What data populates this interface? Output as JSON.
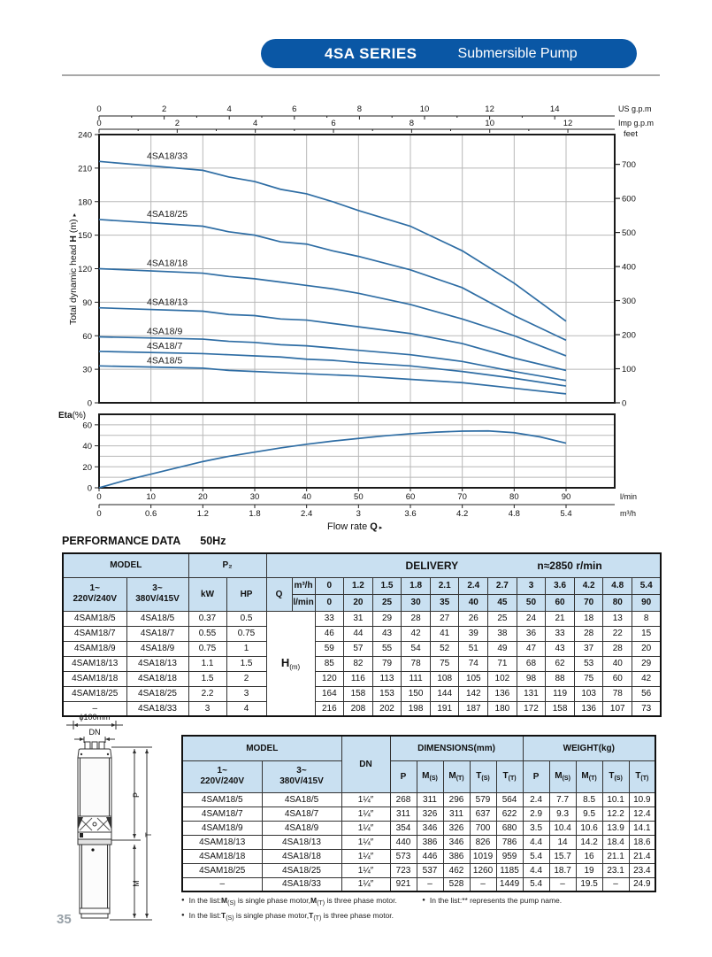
{
  "page": {
    "number": "35"
  },
  "header": {
    "series": "4SA SERIES",
    "subtitle": "Submersible Pump"
  },
  "colors": {
    "banner": "#0a57a5",
    "curve": "#2e6da4",
    "grid": "#b8b8b8",
    "border": "#1a1a1a",
    "table_header_bg": "#c9e0f1"
  },
  "section_heading": {
    "title": "PERFORMANCE DATA",
    "freq": "50Hz"
  },
  "chart_data": [
    {
      "type": "line",
      "title": "Head vs flow curves",
      "x_unit": "l/min",
      "x": [
        0,
        20,
        25,
        30,
        35,
        40,
        45,
        50,
        60,
        70,
        80,
        90
      ],
      "series": [
        {
          "name": "4SA18/33",
          "values": [
            216,
            208,
            202,
            198,
            191,
            187,
            180,
            172,
            158,
            136,
            107,
            73
          ]
        },
        {
          "name": "4SA18/25",
          "values": [
            164,
            158,
            153,
            150,
            144,
            142,
            136,
            131,
            119,
            103,
            78,
            56
          ]
        },
        {
          "name": "4SA18/18",
          "values": [
            120,
            116,
            113,
            111,
            108,
            105,
            102,
            98,
            88,
            75,
            60,
            42
          ]
        },
        {
          "name": "4SA18/13",
          "values": [
            85,
            82,
            79,
            78,
            75,
            74,
            71,
            68,
            62,
            53,
            40,
            29
          ]
        },
        {
          "name": "4SA18/9",
          "values": [
            59,
            57,
            55,
            54,
            52,
            51,
            49,
            47,
            43,
            37,
            28,
            20
          ]
        },
        {
          "name": "4SA18/7",
          "values": [
            46,
            44,
            43,
            42,
            41,
            39,
            38,
            36,
            33,
            28,
            22,
            15
          ]
        },
        {
          "name": "4SA18/5",
          "values": [
            33,
            31,
            29,
            28,
            27,
            26,
            25,
            24,
            21,
            18,
            13,
            8
          ]
        }
      ],
      "ylabel_parts": [
        "Total dynamic head ",
        "H",
        " (m) "
      ],
      "ylabel_arrow": "▸",
      "ylim": [
        0,
        240
      ],
      "ytick_step": 30,
      "right_axis": {
        "unit": "feet",
        "ticks": [
          0,
          100,
          200,
          300,
          400,
          500,
          600,
          700
        ]
      },
      "top_axes": [
        {
          "unit": "US g.p.m",
          "ticks": [
            0,
            2,
            4,
            6,
            8,
            10,
            12,
            14
          ],
          "minor_step": 1
        },
        {
          "unit": "Imp g.p.m",
          "ticks": [
            0,
            2,
            4,
            6,
            8,
            10,
            12
          ],
          "minor_step": 1
        }
      ],
      "grid": true,
      "legend_position": "on-curve-labels"
    },
    {
      "type": "line",
      "title": "Efficiency curve",
      "ylabel": "Eta",
      "ylabel_unit": "(%)",
      "ylim": [
        0,
        70
      ],
      "yticks": [
        0,
        20,
        40,
        60
      ],
      "points": [
        [
          0,
          0
        ],
        [
          5,
          7
        ],
        [
          10,
          13
        ],
        [
          15,
          19
        ],
        [
          20,
          25
        ],
        [
          25,
          30
        ],
        [
          30,
          34
        ],
        [
          35,
          38
        ],
        [
          40,
          41.5
        ],
        [
          45,
          44.5
        ],
        [
          50,
          47
        ],
        [
          55,
          49.5
        ],
        [
          60,
          51.5
        ],
        [
          65,
          53
        ],
        [
          70,
          54
        ],
        [
          75,
          54.2
        ],
        [
          80,
          52.5
        ],
        [
          85,
          48.5
        ],
        [
          90,
          42.5
        ]
      ],
      "x_ticks_lmin": [
        0,
        10,
        20,
        30,
        40,
        50,
        60,
        70,
        80,
        90
      ],
      "x_ticks_m3h": [
        "0",
        "0.6",
        "1.2",
        "1.8",
        "2.4",
        "3",
        "3.6",
        "4.2",
        "4.8",
        "5.4"
      ],
      "x_units": [
        "l/min",
        "m³/h"
      ],
      "xlabel": "Flow rate",
      "xlabel_sym": "Q",
      "xlabel_arrow": "▸",
      "grid": true
    }
  ],
  "perf_table": {
    "header": {
      "model": "MODEL",
      "p2": "P₂",
      "delivery": "DELIVERY",
      "speed": "n≈2850 r/min",
      "phase1": "1~",
      "v1": "220V/240V",
      "phase3": "3~",
      "v3": "380V/415V",
      "kw": "kW",
      "hp": "HP",
      "q": "Q",
      "m3h": "m³/h",
      "lmin": "l/min",
      "h": "H",
      "h_sub": "(m)"
    },
    "q_m3h": [
      "0",
      "1.2",
      "1.5",
      "1.8",
      "2.1",
      "2.4",
      "2.7",
      "3",
      "3.6",
      "4.2",
      "4.8",
      "5.4"
    ],
    "q_lmin": [
      "0",
      "20",
      "25",
      "30",
      "35",
      "40",
      "45",
      "50",
      "60",
      "70",
      "80",
      "90"
    ],
    "rows": [
      {
        "m1": "4SAM18/5",
        "m3": "4SA18/5",
        "kw": "0.37",
        "hp": "0.5",
        "h": [
          33,
          31,
          29,
          28,
          27,
          26,
          25,
          24,
          21,
          18,
          13,
          8
        ]
      },
      {
        "m1": "4SAM18/7",
        "m3": "4SA18/7",
        "kw": "0.55",
        "hp": "0.75",
        "h": [
          46,
          44,
          43,
          42,
          41,
          39,
          38,
          36,
          33,
          28,
          22,
          15
        ]
      },
      {
        "m1": "4SAM18/9",
        "m3": "4SA18/9",
        "kw": "0.75",
        "hp": "1",
        "h": [
          59,
          57,
          55,
          54,
          52,
          51,
          49,
          47,
          43,
          37,
          28,
          20
        ]
      },
      {
        "m1": "4SAM18/13",
        "m3": "4SA18/13",
        "kw": "1.1",
        "hp": "1.5",
        "h": [
          85,
          82,
          79,
          78,
          75,
          74,
          71,
          68,
          62,
          53,
          40,
          29
        ]
      },
      {
        "m1": "4SAM18/18",
        "m3": "4SA18/18",
        "kw": "1.5",
        "hp": "2",
        "h": [
          120,
          116,
          113,
          111,
          108,
          105,
          102,
          98,
          88,
          75,
          60,
          42
        ]
      },
      {
        "m1": "4SAM18/25",
        "m3": "4SA18/25",
        "kw": "2.2",
        "hp": "3",
        "h": [
          164,
          158,
          153,
          150,
          144,
          142,
          136,
          131,
          119,
          103,
          78,
          56
        ]
      },
      {
        "m1": "–",
        "m3": "4SA18/33",
        "kw": "3",
        "hp": "4",
        "h": [
          216,
          208,
          202,
          198,
          191,
          187,
          180,
          172,
          158,
          136,
          107,
          73
        ]
      }
    ]
  },
  "dim_table": {
    "header": {
      "model": "MODEL",
      "dn": "DN",
      "dims": "DIMENSIONS(mm)",
      "weight": "WEIGHT(kg)",
      "phase1": "1~",
      "v1": "220V/240V",
      "phase3": "3~",
      "v3": "380V/415V",
      "cols": [
        "P",
        "M(S)",
        "M(T)",
        "T(S)",
        "T(T)"
      ]
    },
    "rows": [
      {
        "m1": "4SAM18/5",
        "m3": "4SA18/5",
        "dn": "1¼″",
        "dims": [
          "268",
          "311",
          "296",
          "579",
          "564"
        ],
        "weights": [
          "2.4",
          "7.7",
          "8.5",
          "10.1",
          "10.9"
        ]
      },
      {
        "m1": "4SAM18/7",
        "m3": "4SA18/7",
        "dn": "1¼″",
        "dims": [
          "311",
          "326",
          "311",
          "637",
          "622"
        ],
        "weights": [
          "2.9",
          "9.3",
          "9.5",
          "12.2",
          "12.4"
        ]
      },
      {
        "m1": "4SAM18/9",
        "m3": "4SA18/9",
        "dn": "1¼″",
        "dims": [
          "354",
          "346",
          "326",
          "700",
          "680"
        ],
        "weights": [
          "3.5",
          "10.4",
          "10.6",
          "13.9",
          "14.1"
        ]
      },
      {
        "m1": "4SAM18/13",
        "m3": "4SA18/13",
        "dn": "1¼″",
        "dims": [
          "440",
          "386",
          "346",
          "826",
          "786"
        ],
        "weights": [
          "4.4",
          "14",
          "14.2",
          "18.4",
          "18.6"
        ]
      },
      {
        "m1": "4SAM18/18",
        "m3": "4SA18/18",
        "dn": "1¼″",
        "dims": [
          "573",
          "446",
          "386",
          "1019",
          "959"
        ],
        "weights": [
          "5.4",
          "15.7",
          "16",
          "21.1",
          "21.4"
        ]
      },
      {
        "m1": "4SAM18/25",
        "m3": "4SA18/25",
        "dn": "1¼″",
        "dims": [
          "723",
          "537",
          "462",
          "1260",
          "1185"
        ],
        "weights": [
          "4.4",
          "18.7",
          "19",
          "23.1",
          "23.4"
        ]
      },
      {
        "m1": "–",
        "m3": "4SA18/33",
        "dn": "1¼″",
        "dims": [
          "921",
          "–",
          "528",
          "–",
          "1449"
        ],
        "weights": [
          "5.4",
          "–",
          "19.5",
          "–",
          "24.9"
        ]
      }
    ]
  },
  "footnotes": {
    "f1": "In the list:M(S) is single phase motor,M(T) is three phase motor.",
    "f2": "In the list:** represents the pump name.",
    "f3": "In the list:T(S) is single phase motor,T(T) is three phase motor."
  },
  "pump_diagram": {
    "labels": {
      "dia": "ϕ100mm",
      "dn": "DN",
      "p": "P",
      "m": "M",
      "t": "T"
    }
  }
}
